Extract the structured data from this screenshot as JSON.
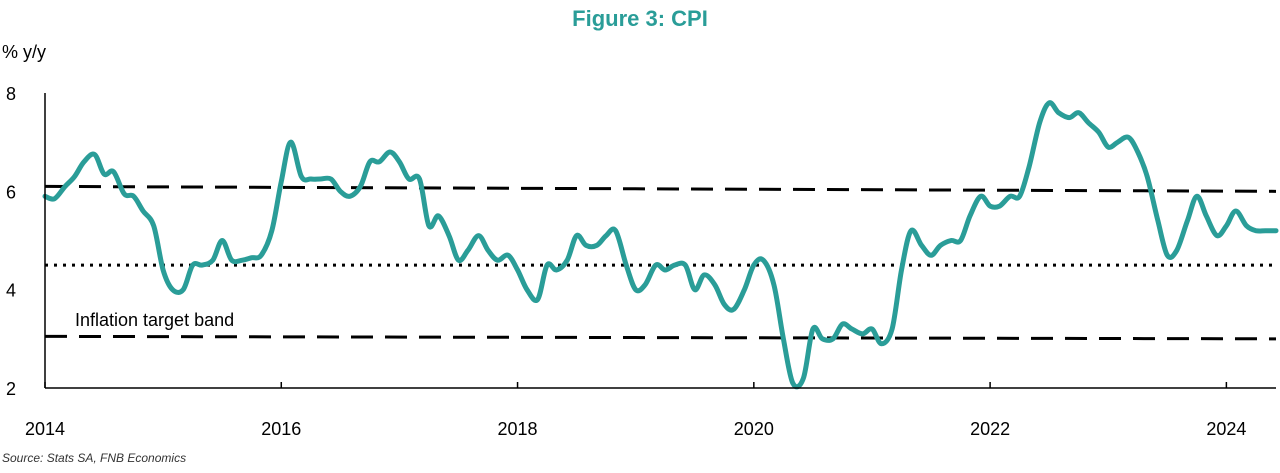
{
  "colors": {
    "series": "#2a9d98",
    "title": "#2a9d98",
    "axis": "#000000",
    "band": "#000000"
  },
  "chart_data": {
    "type": "line",
    "title": "Figure 3: CPI",
    "ylabel": "% y/y",
    "xlabel": "",
    "xlim": [
      2014.0,
      2024.42
    ],
    "ylim": [
      2,
      8
    ],
    "yticks": [
      2,
      4,
      6,
      8
    ],
    "xticks": [
      2014,
      2016,
      2018,
      2020,
      2022,
      2024
    ],
    "source": "Source: Stats SA, FNB Economics",
    "annotation": "Inflation target band",
    "reference_lines": [
      {
        "name": "upper-band",
        "style": "dashed",
        "x": [
          2014.0,
          2024.42
        ],
        "y": [
          6.1,
          6.0
        ]
      },
      {
        "name": "midpoint",
        "style": "dotted",
        "x": [
          2014.0,
          2024.42
        ],
        "y": [
          4.5,
          4.5
        ]
      },
      {
        "name": "lower-band",
        "style": "dashed",
        "x": [
          2014.0,
          2024.42
        ],
        "y": [
          3.05,
          3.0
        ]
      }
    ],
    "series": [
      {
        "name": "CPI",
        "x": [
          2014.0,
          2014.08,
          2014.17,
          2014.25,
          2014.33,
          2014.42,
          2014.5,
          2014.58,
          2014.67,
          2014.75,
          2014.83,
          2014.92,
          2015.0,
          2015.08,
          2015.17,
          2015.25,
          2015.33,
          2015.42,
          2015.5,
          2015.58,
          2015.67,
          2015.75,
          2015.83,
          2015.92,
          2016.0,
          2016.08,
          2016.17,
          2016.25,
          2016.33,
          2016.42,
          2016.5,
          2016.58,
          2016.67,
          2016.75,
          2016.83,
          2016.92,
          2017.0,
          2017.08,
          2017.17,
          2017.25,
          2017.33,
          2017.42,
          2017.5,
          2017.58,
          2017.67,
          2017.75,
          2017.83,
          2017.92,
          2018.0,
          2018.08,
          2018.17,
          2018.25,
          2018.33,
          2018.42,
          2018.5,
          2018.58,
          2018.67,
          2018.75,
          2018.83,
          2018.92,
          2019.0,
          2019.08,
          2019.17,
          2019.25,
          2019.33,
          2019.42,
          2019.5,
          2019.58,
          2019.67,
          2019.75,
          2019.83,
          2019.92,
          2020.0,
          2020.08,
          2020.17,
          2020.25,
          2020.33,
          2020.42,
          2020.5,
          2020.58,
          2020.67,
          2020.75,
          2020.83,
          2020.92,
          2021.0,
          2021.08,
          2021.17,
          2021.25,
          2021.33,
          2021.42,
          2021.5,
          2021.58,
          2021.67,
          2021.75,
          2021.83,
          2021.92,
          2022.0,
          2022.08,
          2022.17,
          2022.25,
          2022.33,
          2022.42,
          2022.5,
          2022.58,
          2022.67,
          2022.75,
          2022.83,
          2022.92,
          2023.0,
          2023.08,
          2023.17,
          2023.25,
          2023.33,
          2023.42,
          2023.5,
          2023.58,
          2023.67,
          2023.75,
          2023.83,
          2023.92,
          2024.0,
          2024.08,
          2024.17,
          2024.25,
          2024.33,
          2024.42
        ],
        "y": [
          5.9,
          5.85,
          6.1,
          6.3,
          6.6,
          6.75,
          6.35,
          6.4,
          5.95,
          5.9,
          5.6,
          5.3,
          4.4,
          4.0,
          4.0,
          4.5,
          4.5,
          4.6,
          5.0,
          4.6,
          4.6,
          4.65,
          4.7,
          5.2,
          6.2,
          7.0,
          6.3,
          6.25,
          6.25,
          6.25,
          6.0,
          5.9,
          6.1,
          6.6,
          6.6,
          6.8,
          6.6,
          6.25,
          6.25,
          5.3,
          5.5,
          5.1,
          4.6,
          4.8,
          5.1,
          4.8,
          4.6,
          4.7,
          4.4,
          4.0,
          3.8,
          4.5,
          4.4,
          4.6,
          5.1,
          4.9,
          4.9,
          5.1,
          5.2,
          4.5,
          4.0,
          4.1,
          4.5,
          4.4,
          4.5,
          4.5,
          4.0,
          4.3,
          4.1,
          3.7,
          3.6,
          4.0,
          4.5,
          4.6,
          4.1,
          3.0,
          2.1,
          2.2,
          3.2,
          3.0,
          3.0,
          3.3,
          3.2,
          3.1,
          3.2,
          2.9,
          3.2,
          4.4,
          5.2,
          4.9,
          4.7,
          4.9,
          5.0,
          5.0,
          5.5,
          5.9,
          5.7,
          5.7,
          5.9,
          5.9,
          6.5,
          7.4,
          7.8,
          7.6,
          7.5,
          7.6,
          7.4,
          7.2,
          6.9,
          7.0,
          7.1,
          6.8,
          6.3,
          5.4,
          4.7,
          4.8,
          5.4,
          5.9,
          5.5,
          5.1,
          5.3,
          5.6,
          5.3,
          5.2,
          5.2,
          5.2
        ]
      }
    ]
  }
}
